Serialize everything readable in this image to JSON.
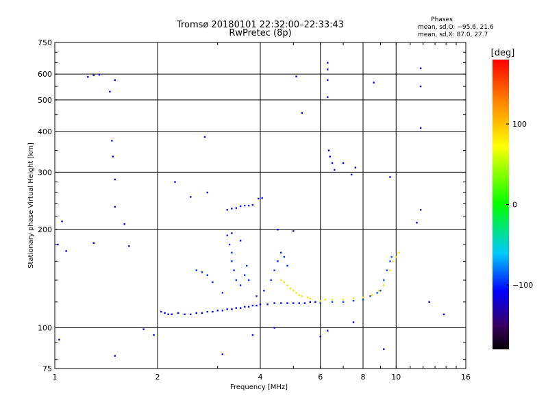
{
  "chart_data": {
    "type": "scatter",
    "title": "Tromsø 20180101 22:32:00–22:33:43",
    "subtitle": "RwPretec (8p)",
    "xlabel": "Frequency [MHz]",
    "ylabel": "Stationary phase Virtual Height [km]",
    "xscale": "log",
    "yscale": "log",
    "xlim": [
      1,
      16
    ],
    "ylim": [
      75,
      750
    ],
    "xticks": [
      1,
      2,
      4,
      6,
      8,
      10,
      16
    ],
    "xtick_labels": [
      "1",
      "2",
      "4",
      "6",
      "8",
      "10",
      "16"
    ],
    "yticks": [
      75,
      100,
      200,
      300,
      400,
      500,
      600,
      750
    ],
    "ytick_labels": [
      "75",
      "100",
      "200",
      "300",
      "400",
      "500",
      "600",
      "750"
    ],
    "grid": true,
    "stats": {
      "heading": "Phases",
      "line_o": "mean, sd,O: −95.6, 21.6",
      "line_x": "mean, sd,X:  87.0, 27.7"
    },
    "colorbar": {
      "label": "[deg]",
      "min": -180,
      "max": 180,
      "ticks": [
        100,
        0,
        -100
      ],
      "tick_labels": [
        "100",
        "0",
        "−100"
      ]
    },
    "series": [
      {
        "group": "o-trace-low",
        "points": [
          [
            2.05,
            112
          ],
          [
            2.1,
            111
          ],
          [
            2.15,
            110
          ],
          [
            2.2,
            110
          ],
          [
            2.3,
            111
          ],
          [
            2.4,
            110
          ],
          [
            2.5,
            110
          ],
          [
            2.6,
            111
          ],
          [
            2.7,
            111
          ],
          [
            2.8,
            112
          ],
          [
            2.9,
            112
          ],
          [
            3.0,
            113
          ],
          [
            3.1,
            113
          ],
          [
            3.2,
            114
          ],
          [
            3.3,
            114
          ],
          [
            3.4,
            115
          ],
          [
            3.5,
            115
          ],
          [
            3.6,
            116
          ],
          [
            3.7,
            116
          ],
          [
            3.8,
            117
          ],
          [
            3.9,
            117
          ],
          [
            4.0,
            118
          ],
          [
            4.2,
            118
          ],
          [
            4.4,
            119
          ],
          [
            4.6,
            119
          ],
          [
            4.8,
            119
          ],
          [
            5.0,
            119
          ],
          [
            5.2,
            119
          ],
          [
            5.4,
            119
          ],
          [
            5.6,
            120
          ],
          [
            5.8,
            120
          ]
        ],
        "phase": -110
      },
      {
        "group": "o-trace-cusp",
        "points": [
          [
            2.6,
            150
          ],
          [
            2.7,
            148
          ],
          [
            2.8,
            145
          ],
          [
            2.9,
            138
          ],
          [
            3.1,
            128
          ],
          [
            3.2,
            192
          ],
          [
            3.25,
            180
          ],
          [
            3.3,
            170
          ],
          [
            3.3,
            160
          ],
          [
            3.35,
            150
          ],
          [
            3.4,
            140
          ],
          [
            3.5,
            135
          ],
          [
            3.6,
            145
          ],
          [
            3.65,
            155
          ],
          [
            3.7,
            140
          ],
          [
            3.9,
            125
          ],
          [
            4.1,
            130
          ],
          [
            4.3,
            140
          ],
          [
            4.4,
            150
          ],
          [
            4.5,
            160
          ],
          [
            4.6,
            170
          ],
          [
            4.7,
            165
          ],
          [
            4.8,
            155
          ]
        ],
        "phase": -100
      },
      {
        "group": "o-trace-f-layer",
        "points": [
          [
            3.2,
            230
          ],
          [
            3.3,
            232
          ],
          [
            3.4,
            233
          ],
          [
            3.5,
            236
          ],
          [
            3.6,
            237
          ],
          [
            3.7,
            237
          ],
          [
            3.8,
            238
          ],
          [
            3.95,
            249
          ],
          [
            4.05,
            250
          ]
        ],
        "phase": -105
      },
      {
        "group": "x-trace",
        "points": [
          [
            4.6,
            140
          ],
          [
            4.7,
            138
          ],
          [
            4.8,
            135
          ],
          [
            4.9,
            132
          ],
          [
            5.0,
            130
          ],
          [
            5.1,
            128
          ],
          [
            5.2,
            126
          ],
          [
            5.3,
            125
          ],
          [
            5.5,
            124
          ],
          [
            5.6,
            123
          ],
          [
            6.0,
            121
          ],
          [
            6.2,
            122
          ],
          [
            6.5,
            122
          ],
          [
            7.0,
            122
          ],
          [
            7.5,
            123
          ],
          [
            8.0,
            124
          ],
          [
            8.5,
            126
          ],
          [
            8.9,
            130
          ],
          [
            9.2,
            135
          ],
          [
            9.6,
            150
          ],
          [
            9.8,
            160
          ],
          [
            10.0,
            165
          ],
          [
            10.2,
            170
          ]
        ],
        "phase": 85
      },
      {
        "group": "o-trace-high",
        "points": [
          [
            6.0,
            119
          ],
          [
            6.5,
            120
          ],
          [
            7.0,
            120
          ],
          [
            7.5,
            121
          ],
          [
            8.0,
            122
          ],
          [
            8.4,
            125
          ],
          [
            8.8,
            128
          ],
          [
            9.0,
            130
          ],
          [
            9.2,
            140
          ],
          [
            9.4,
            150
          ],
          [
            9.6,
            160
          ],
          [
            9.7,
            165
          ]
        ],
        "phase": -90
      },
      {
        "group": "scattered",
        "points": [
          [
            1.25,
            588
          ],
          [
            1.3,
            595
          ],
          [
            1.35,
            597
          ],
          [
            1.45,
            530
          ],
          [
            1.5,
            575
          ],
          [
            1.47,
            375
          ],
          [
            1.48,
            335
          ],
          [
            1.5,
            285
          ],
          [
            1.5,
            235
          ],
          [
            1.6,
            208
          ],
          [
            1.3,
            182
          ],
          [
            1.65,
            178
          ],
          [
            1.05,
            212
          ],
          [
            1.08,
            172
          ],
          [
            1.82,
            99
          ],
          [
            1.95,
            95
          ],
          [
            2.25,
            280
          ],
          [
            2.5,
            252
          ],
          [
            2.75,
            385
          ],
          [
            2.8,
            260
          ],
          [
            6.3,
            650
          ],
          [
            6.3,
            620
          ],
          [
            6.3,
            575
          ],
          [
            6.3,
            510
          ],
          [
            6.35,
            350
          ],
          [
            6.4,
            335
          ],
          [
            6.5,
            320
          ],
          [
            6.6,
            305
          ],
          [
            7.0,
            320
          ],
          [
            7.4,
            295
          ],
          [
            7.6,
            310
          ],
          [
            8.6,
            565
          ],
          [
            9.6,
            290
          ],
          [
            11.8,
            625
          ],
          [
            11.8,
            550
          ],
          [
            11.8,
            410
          ],
          [
            11.8,
            230
          ],
          [
            11.5,
            210
          ],
          [
            12.5,
            120
          ],
          [
            13.8,
            110
          ],
          [
            5.3,
            456
          ],
          [
            5.1,
            590
          ],
          [
            3.3,
            195
          ],
          [
            3.5,
            185
          ],
          [
            4.5,
            200
          ],
          [
            5.0,
            198
          ],
          [
            6.0,
            94
          ],
          [
            6.3,
            98
          ],
          [
            7.5,
            104
          ],
          [
            9.2,
            86
          ],
          [
            3.1,
            83
          ],
          [
            3.8,
            95
          ],
          [
            4.4,
            100
          ],
          [
            1.5,
            82
          ],
          [
            1.03,
            92
          ],
          [
            1.02,
            180
          ]
        ],
        "phase": -110
      }
    ]
  }
}
